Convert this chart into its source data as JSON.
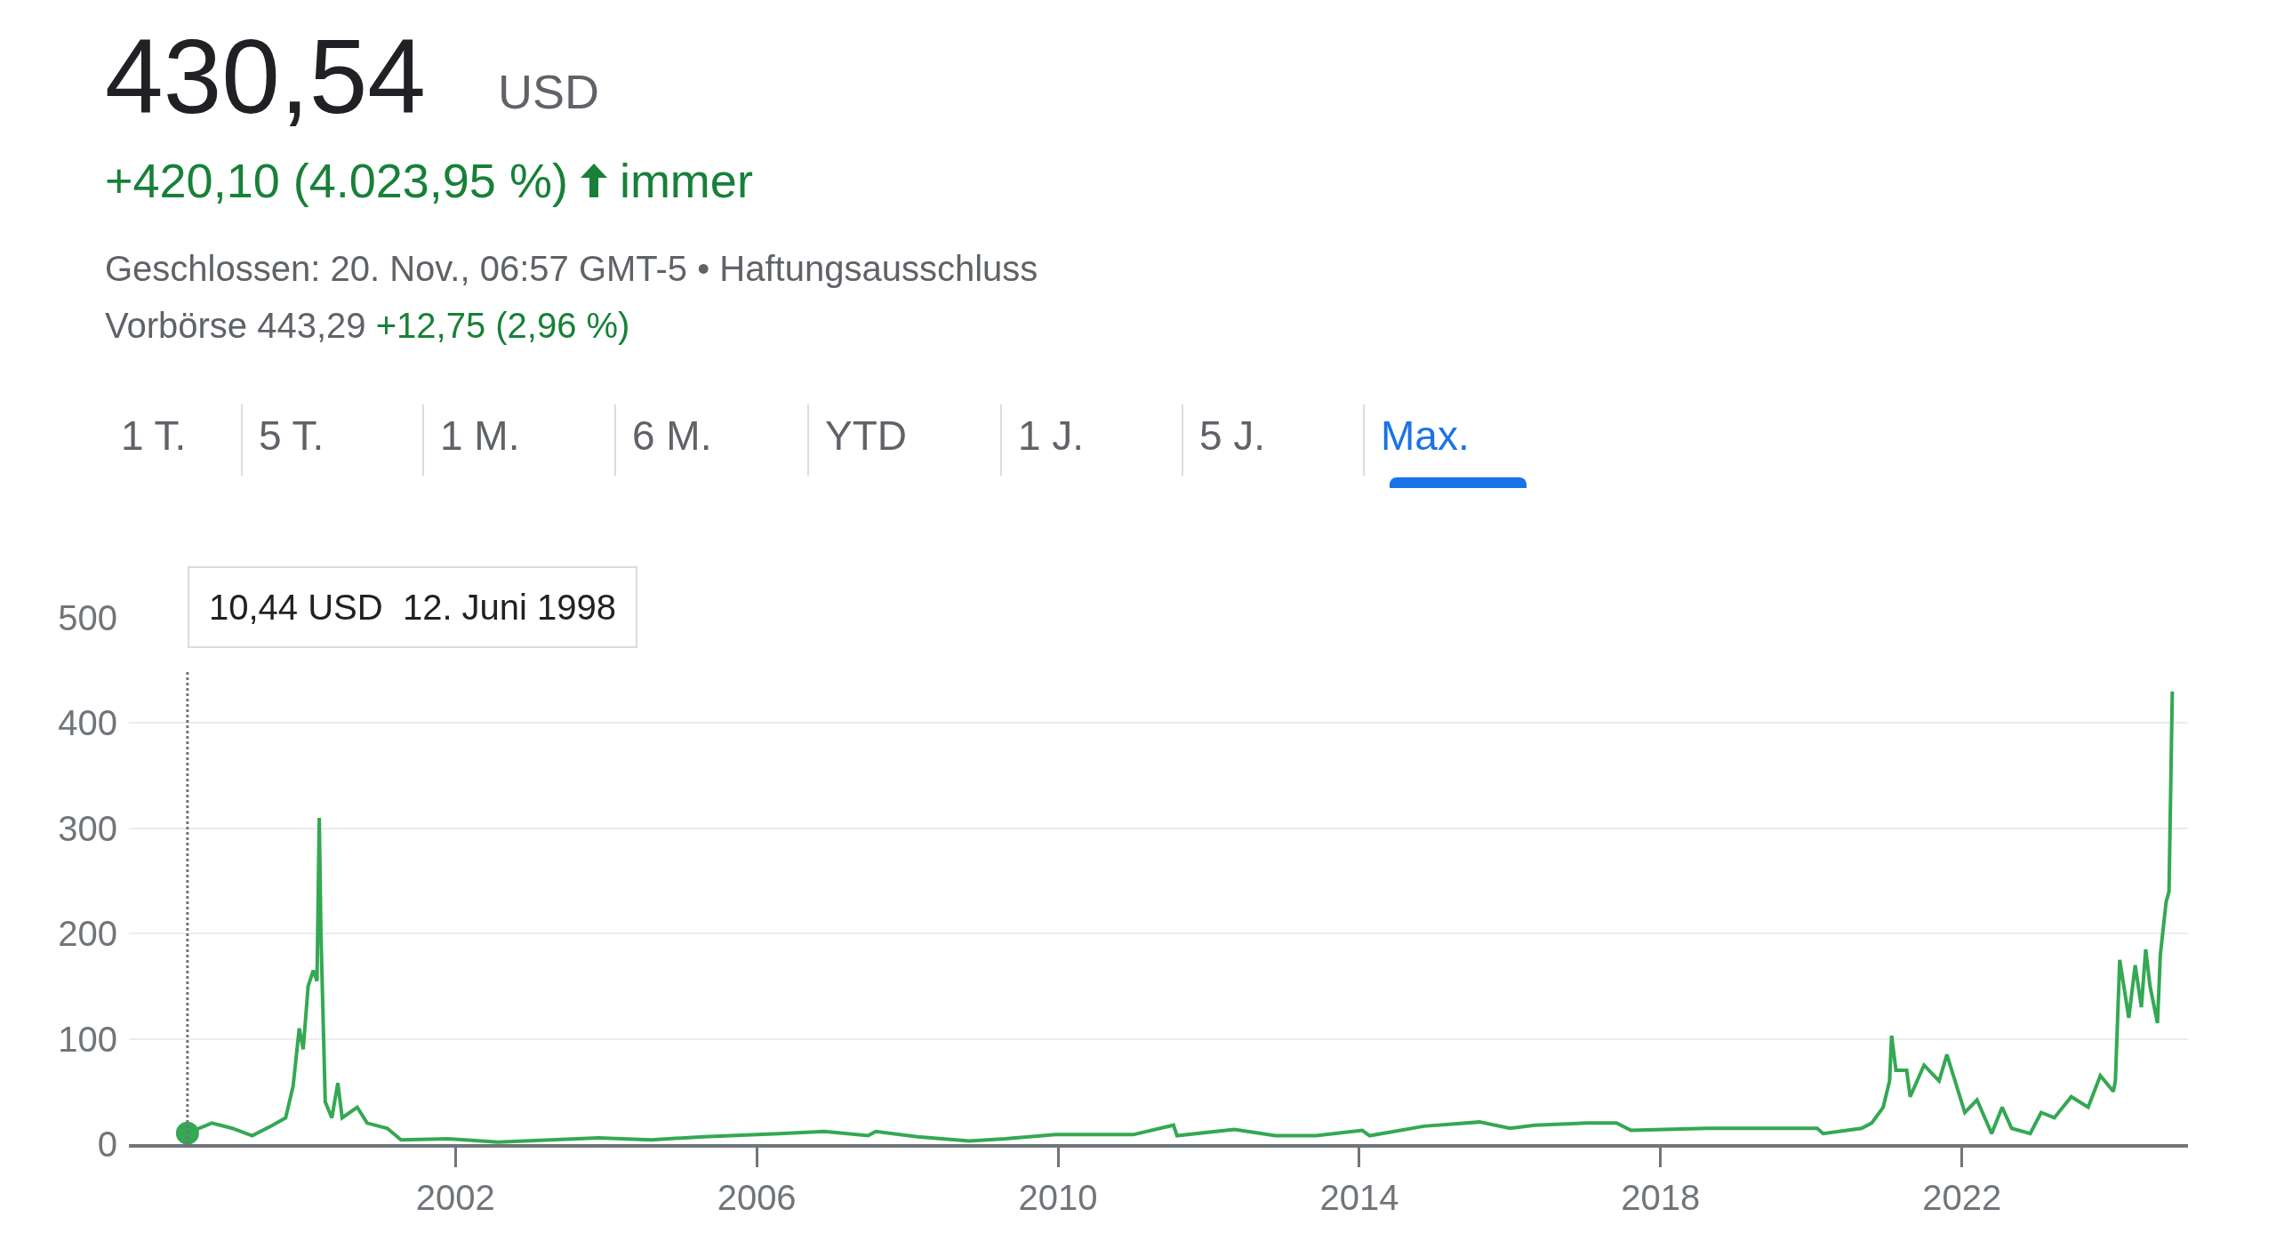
{
  "chart_data": {
    "type": "line",
    "title": "430,54",
    "annotations": [
      "USD",
      "+420,10 (4.023,95 %)",
      "immer",
      "Geschlossen: 20. Nov., 06:57 GMT-5 • Haftungsausschluss",
      "Vorbörse 443,29",
      "+12,75 (2,96 %)",
      "1 T.",
      "5 T.",
      "1 M.",
      "6 M.",
      "YTD",
      "1 J.",
      "5 J.",
      "Max.",
      "10,44 USD  12. Juni 1998"
    ],
    "series": [
      {
        "color": "#34a853",
        "x": [
          "1998-06-12",
          "1998-10-08",
          "1999-01-15",
          "1999-04-22",
          "1999-07-30",
          "1999-10-01",
          "1999-11-06",
          "1999-12-06",
          "1999-12-25",
          "2000-01-18",
          "2000-02-12",
          "2000-03-01",
          "2000-03-12",
          "2000-03-20",
          "2000-04-10",
          "2000-05-12",
          "2000-06-10",
          "2000-07-01",
          "2000-09-12",
          "2000-10-30",
          "2001-02-05",
          "2001-04-12",
          "2001-11-25",
          "2002-07-26",
          "2003-11-25",
          "2004-08-07",
          "2005-04-20",
          "2006-04-20",
          "2006-11-25",
          "2007-06-25",
          "2007-08-01",
          "2008-02-20",
          "2008-10-27",
          "2009-04-20",
          "2009-12-20",
          "2011-01-01",
          "2011-07-15",
          "2011-08-01",
          "2012-05-05",
          "2012-11-20",
          "2013-06-05",
          "2014-01-15",
          "2014-02-20",
          "2014-11-10",
          "2015-08-07",
          "2016-01-01",
          "2016-05-01",
          "2017-01-10",
          "2017-06-01",
          "2017-08-10",
          "2018-08-15",
          "2019-06-20",
          "2020-01-30",
          "2020-02-28",
          "2020-09-01",
          "2020-10-20",
          "2020-12-15",
          "2021-01-15",
          "2021-01-25",
          "2021-02-15",
          "2021-04-08",
          "2021-04-25",
          "2021-07-01",
          "2021-09-12",
          "2021-10-20",
          "2022-01-15",
          "2022-03-15",
          "2022-05-25",
          "2022-07-15",
          "2022-08-30",
          "2022-11-28",
          "2023-01-20",
          "2023-03-25",
          "2023-06-15",
          "2023-09-05",
          "2023-11-03",
          "2024-01-05",
          "2024-01-15",
          "2024-02-05",
          "2024-03-20",
          "2024-04-20",
          "2024-05-20",
          "2024-06-10",
          "2024-07-01",
          "2024-08-06",
          "2024-08-20",
          "2024-09-17",
          "2024-10-01",
          "2024-10-17"
        ],
        "values": [
          10.44,
          20,
          15,
          8,
          18,
          25,
          55,
          110,
          90,
          150,
          165,
          155,
          310,
          200,
          40,
          25,
          58,
          25,
          35,
          20,
          15,
          4,
          5,
          2,
          6,
          4,
          7,
          10,
          12,
          8,
          12,
          7,
          3,
          5,
          9,
          9,
          18,
          8,
          14,
          8,
          8,
          13,
          8,
          17,
          21,
          15,
          18,
          20,
          20,
          13,
          15,
          15,
          15,
          10,
          15,
          20,
          35,
          60,
          103,
          70,
          70,
          45,
          75,
          60,
          85,
          30,
          42,
          10,
          35,
          15,
          10,
          30,
          25,
          45,
          35,
          65,
          50,
          60,
          175,
          120,
          170,
          130,
          185,
          150,
          115,
          180,
          230,
          240,
          430
        ]
      }
    ],
    "ref_lines": [
      {
        "axis": "x",
        "value": "1998-06-12",
        "line_style": "dotted",
        "color": "#70757a"
      }
    ],
    "xlim": [
      "1997-09-01",
      "2025-01-01"
    ],
    "xticks": [
      {
        "value": "2002-01-01",
        "label": "2002"
      },
      {
        "value": "2006-01-01",
        "label": "2006"
      },
      {
        "value": "2010-01-01",
        "label": "2010"
      },
      {
        "value": "2014-01-01",
        "label": "2014"
      },
      {
        "value": "2018-01-01",
        "label": "2018"
      },
      {
        "value": "2022-01-01",
        "label": "2022"
      }
    ],
    "ylim": [
      0,
      500
    ],
    "yticks": [
      0,
      100,
      200,
      300,
      400,
      500
    ],
    "grid": "y",
    "marker": "none",
    "line_style": "solid"
  }
}
